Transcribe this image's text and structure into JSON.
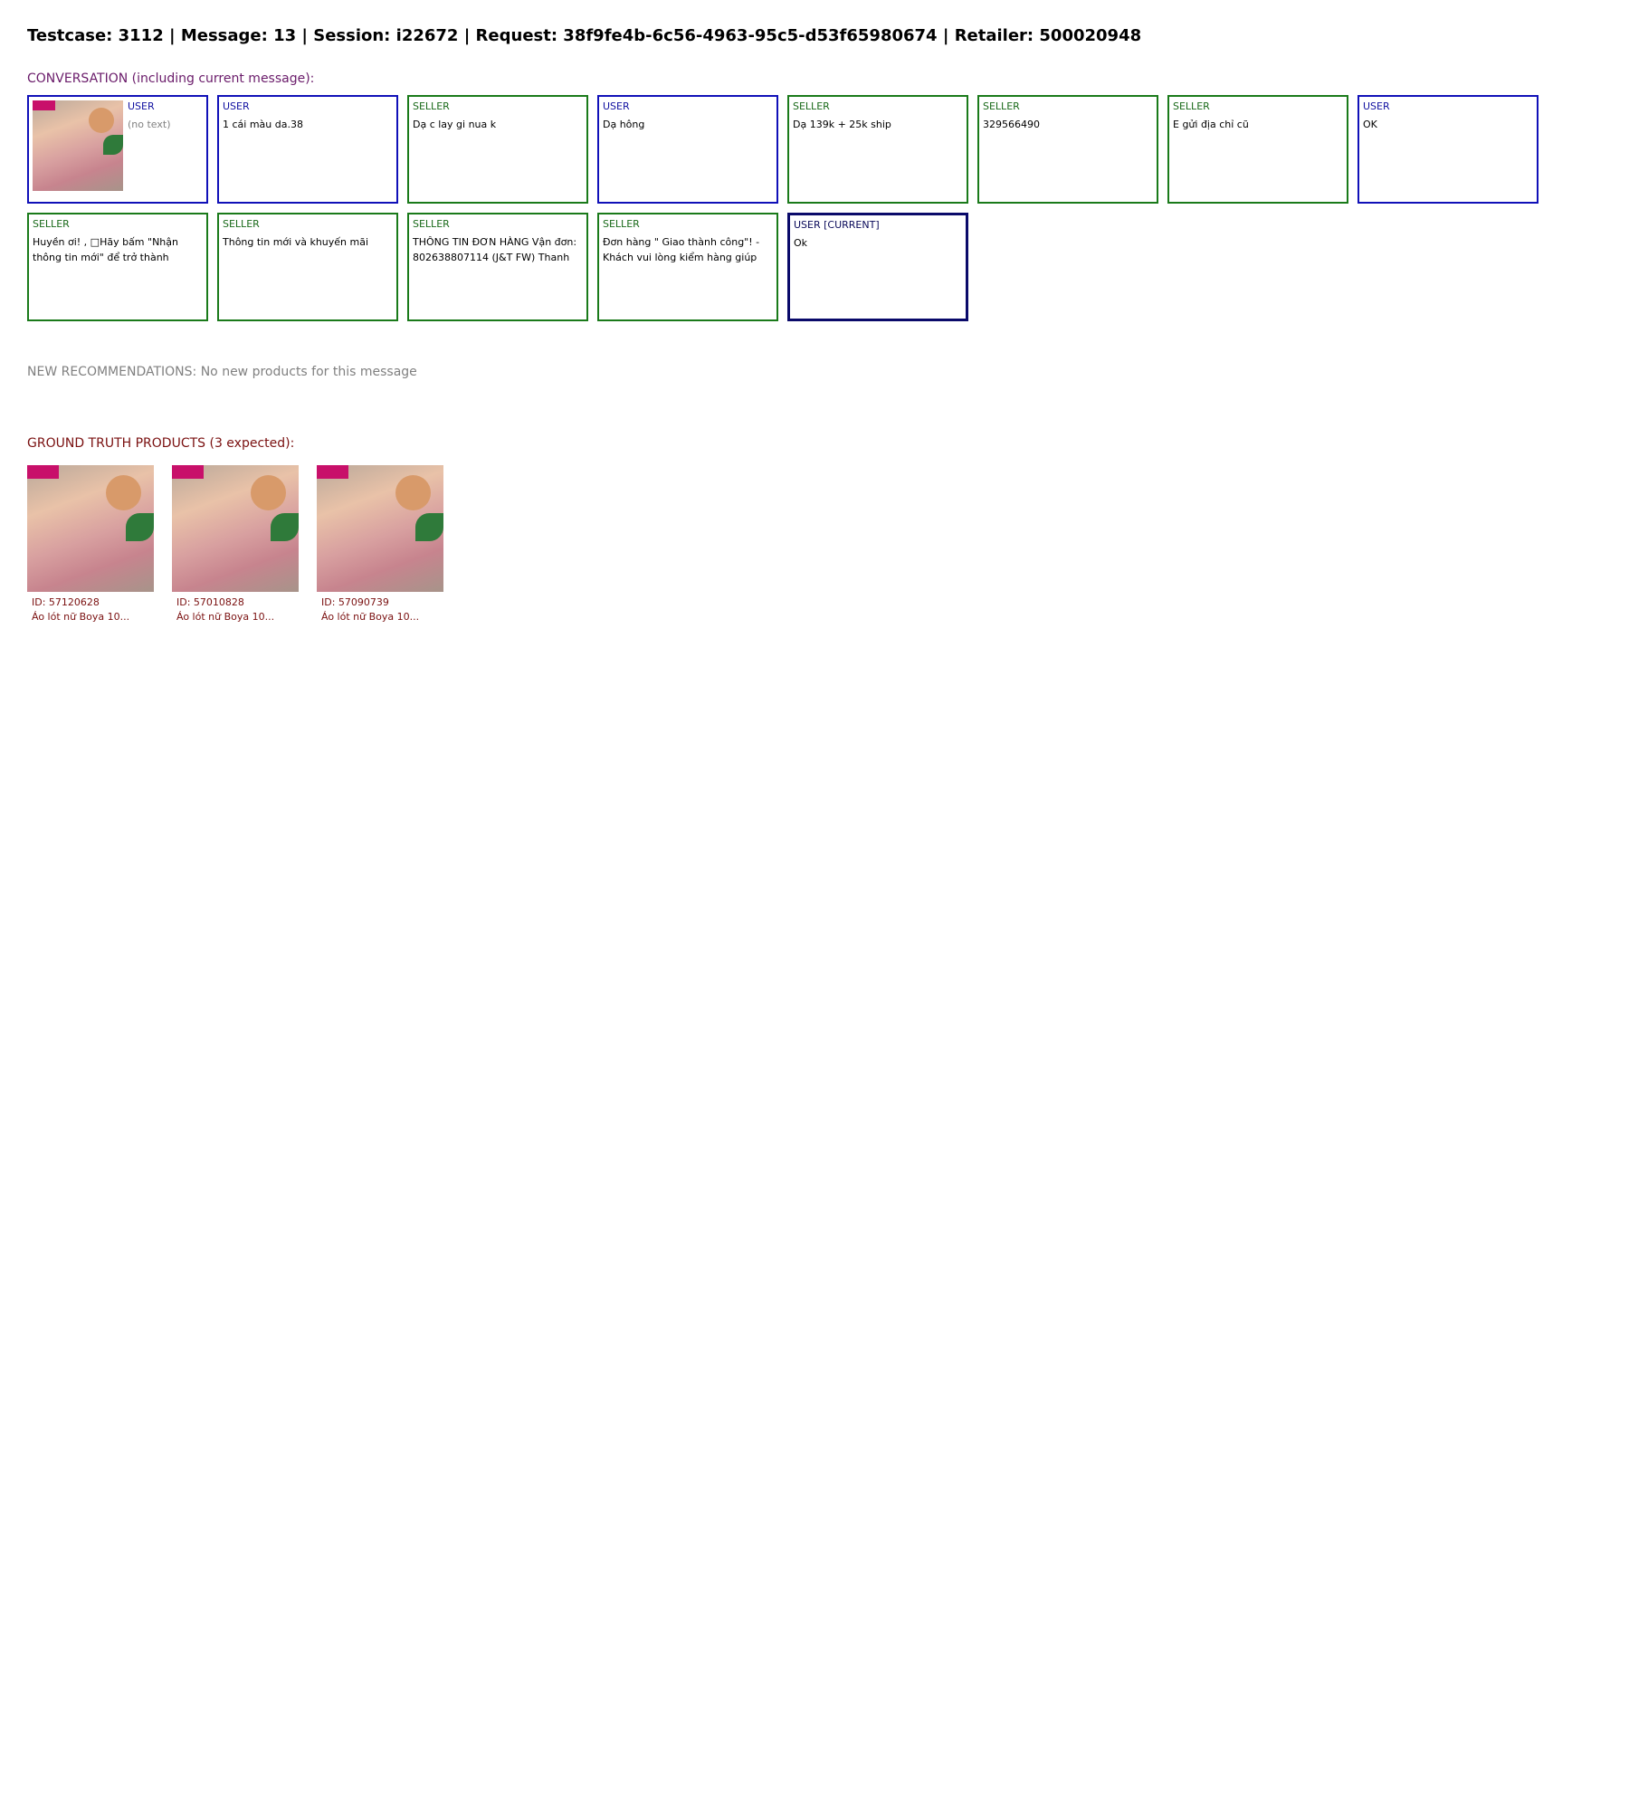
{
  "header": {
    "title": "Testcase: 3112 | Message: 13 | Session: i22672 | Request: 38f9fe4b-6c56-4963-95c5-d53f65980674 | Retailer: 500020948"
  },
  "conversation": {
    "label": "CONVERSATION (including current message):",
    "no_text": "(no text)",
    "messages": [
      {
        "role": "USER",
        "text": "",
        "has_image": true
      },
      {
        "role": "USER",
        "text": "1 cái màu da.38"
      },
      {
        "role": "SELLER",
        "text": "Dạ c lay gi nua k"
      },
      {
        "role": "USER",
        "text": "Dạ hông"
      },
      {
        "role": "SELLER",
        "text": "Dạ 139k + 25k ship"
      },
      {
        "role": "SELLER",
        "text": "329566490"
      },
      {
        "role": "SELLER",
        "text": "E gửi địa chỉ cũ"
      },
      {
        "role": "USER",
        "text": "OK"
      },
      {
        "role": "SELLER",
        "text": "Huyền ơi! , □Hãy bấm \"Nhận thông tin mới\" để trở thành"
      },
      {
        "role": "SELLER",
        "text": "Thông tin mới và khuyến mãi"
      },
      {
        "role": "SELLER",
        "text": "THÔNG TIN ĐƠN HÀNG Vận đơn: 802638807114 (J&T FW) Thanh"
      },
      {
        "role": "SELLER",
        "text": "Đơn hàng \" Giao thành công\"! - Khách vui lòng kiểm hàng giúp"
      },
      {
        "role": "USER [CURRENT]",
        "text": "Ok"
      }
    ]
  },
  "recommendations": {
    "label": "NEW RECOMMENDATIONS: No new products for this message"
  },
  "ground_truth": {
    "label": "GROUND TRUTH PRODUCTS (3 expected):",
    "products": [
      {
        "id": "ID: 57120628",
        "name": "Áo lót nữ Boya 10..."
      },
      {
        "id": "ID: 57010828",
        "name": "Áo lót nữ Boya 10..."
      },
      {
        "id": "ID: 57090739",
        "name": "Áo lót nữ Boya 10..."
      }
    ]
  },
  "colors": {
    "user_border": "#1010b8",
    "seller_border": "#1a7a1a",
    "current_border": "#0a0a6a",
    "conversation_label": "#6a1b6a",
    "ground_truth_label": "#7a1010"
  }
}
